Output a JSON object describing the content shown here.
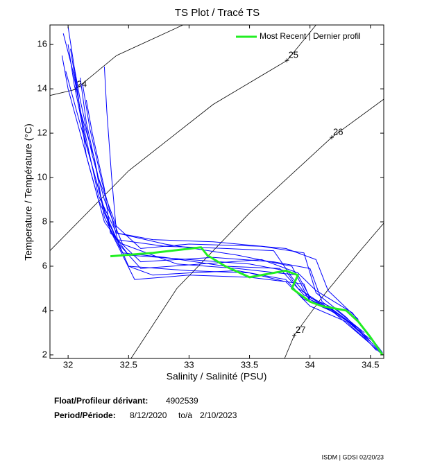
{
  "chart_data": {
    "type": "line",
    "title": "TS Plot / Tracé TS",
    "xlabel": "Salinity / Salinité (PSU)",
    "ylabel": "Temperature / Température (°C)",
    "xlim": [
      31.85,
      34.61
    ],
    "ylim": [
      1.84,
      16.88
    ],
    "xticks": [
      32,
      32.5,
      33,
      33.5,
      34,
      34.5
    ],
    "yticks": [
      2,
      4,
      6,
      8,
      10,
      12,
      14,
      16
    ],
    "legend": "upper right",
    "contour_color": "#000000",
    "contours": [
      {
        "label": "24",
        "x": [
          31.85,
          32.06,
          32.4,
          32.95
        ],
        "values": [
          13.7,
          13.97,
          15.5,
          16.88
        ]
      },
      {
        "label": "25",
        "x": [
          31.85,
          32.5,
          33.2,
          33.81,
          34.05
        ],
        "values": [
          6.7,
          10.3,
          13.3,
          15.28,
          16.88
        ]
      },
      {
        "label": "26",
        "x": [
          32.52,
          32.9,
          33.5,
          34.18,
          34.61
        ],
        "values": [
          1.84,
          5.0,
          8.4,
          11.81,
          13.53
        ]
      },
      {
        "label": "27",
        "x": [
          33.79,
          33.87,
          34.1,
          34.4,
          34.61
        ],
        "values": [
          1.84,
          2.88,
          4.6,
          6.6,
          7.94
        ]
      }
    ],
    "series": [
      {
        "color": "#0000ff",
        "x": [
          32.0,
          32.05,
          32.1,
          32.15,
          32.25,
          32.4,
          32.8,
          33.3,
          33.7,
          33.85,
          34.0,
          34.2,
          34.4,
          34.6
        ],
        "values": [
          16.8,
          15,
          13,
          11,
          9,
          7.2,
          6.9,
          6.8,
          6.7,
          5.5,
          4.5,
          3.9,
          3.2,
          2.0
        ]
      },
      {
        "color": "#0000ff",
        "x": [
          31.95,
          32.0,
          32.1,
          32.2,
          32.3,
          32.5,
          33.0,
          33.5,
          33.8,
          33.9,
          34.1,
          34.3,
          34.5
        ],
        "values": [
          15.5,
          14,
          12,
          10,
          8,
          6.5,
          6.3,
          6.1,
          5.8,
          5.0,
          4.3,
          3.6,
          2.6
        ]
      },
      {
        "color": "#0000ff",
        "x": [
          32.05,
          32.1,
          32.2,
          32.3,
          32.45,
          32.9,
          33.4,
          33.9,
          34.0,
          34.2,
          34.5
        ],
        "values": [
          15.0,
          13.5,
          11,
          9,
          7,
          6.1,
          5.9,
          5.6,
          4.6,
          3.9,
          2.5
        ]
      },
      {
        "color": "#0000ff",
        "x": [
          32.1,
          32.15,
          32.25,
          32.4,
          32.6,
          33.0,
          33.6,
          33.95,
          34.05,
          34.3,
          34.55
        ],
        "values": [
          14.5,
          12.5,
          10,
          7.8,
          6.8,
          7.0,
          6.9,
          6.6,
          4.8,
          3.7,
          2.2
        ]
      },
      {
        "color": "#0000ff",
        "x": [
          32.0,
          32.05,
          32.15,
          32.3,
          32.5,
          33.0,
          33.5,
          33.8,
          34.0,
          34.3,
          34.6
        ],
        "values": [
          16.0,
          14.2,
          11.5,
          8.5,
          6.0,
          5.8,
          5.7,
          5.3,
          4.2,
          3.5,
          2.0
        ]
      },
      {
        "color": "#0000ff",
        "x": [
          32.15,
          32.2,
          32.3,
          32.35,
          32.6,
          33.2,
          33.7,
          34.0,
          34.1,
          34.4
        ],
        "values": [
          13.5,
          12,
          9.5,
          7.5,
          6.2,
          6.4,
          6.2,
          5.9,
          4.4,
          3.2
        ]
      },
      {
        "color": "#0000ff",
        "x": [
          31.98,
          32.08,
          32.2,
          32.35,
          32.55,
          33.0,
          33.5,
          33.95,
          34.0,
          34.2,
          34.5
        ],
        "values": [
          14.8,
          12.8,
          10.5,
          7.6,
          5.4,
          5.6,
          5.5,
          5.2,
          4.5,
          4.0,
          2.7
        ]
      },
      {
        "color": "#0000ff",
        "x": [
          32.3,
          32.32,
          32.36,
          32.4,
          32.7,
          33.2,
          33.8,
          34.05,
          34.15,
          34.4
        ],
        "values": [
          15.0,
          13,
          10,
          7.5,
          7.2,
          7.1,
          6.8,
          6.3,
          4.9,
          3.6
        ]
      },
      {
        "color": "#0000ff",
        "x": [
          32.02,
          32.1,
          32.22,
          32.3,
          32.45,
          32.8,
          33.3,
          33.75,
          33.95,
          34.2,
          34.45
        ],
        "values": [
          15.8,
          13.0,
          10.8,
          8.2,
          6.6,
          6.4,
          6.0,
          5.9,
          4.7,
          4.1,
          3.0
        ]
      },
      {
        "color": "#0000ff",
        "x": [
          32.12,
          32.18,
          32.28,
          32.42,
          32.6,
          33.1,
          33.6,
          33.9,
          34.05,
          34.35,
          34.6
        ],
        "values": [
          14.2,
          12.2,
          9.8,
          7.0,
          5.9,
          6.1,
          6.3,
          5.7,
          4.9,
          3.9,
          2.1
        ]
      },
      {
        "color": "#0000ff",
        "x": [
          31.96,
          32.04,
          32.12,
          32.25,
          32.4,
          32.8,
          33.4,
          33.85,
          34.0,
          34.25,
          34.5
        ],
        "values": [
          16.5,
          14.8,
          12.5,
          9.2,
          7.5,
          7.0,
          6.5,
          6.0,
          4.4,
          3.8,
          2.6
        ]
      },
      {
        "color": "#0000ff",
        "x": [
          32.5,
          32.7,
          33.0,
          33.4,
          33.8,
          33.95,
          34.2
        ],
        "values": [
          6.0,
          5.6,
          5.7,
          5.8,
          5.4,
          4.5,
          4.0
        ]
      },
      {
        "name": "Most Recent | Dernier profil",
        "color": "#22ee22",
        "x": [
          32.35,
          32.7,
          33.1,
          33.15,
          33.3,
          33.5,
          33.8,
          33.9,
          33.85,
          33.95,
          34.0,
          34.1,
          34.3,
          34.4,
          34.5,
          34.6
        ],
        "values": [
          6.45,
          6.6,
          6.85,
          6.5,
          6.0,
          5.5,
          5.8,
          5.6,
          5.0,
          4.6,
          4.4,
          4.2,
          4.0,
          3.5,
          2.8,
          2.0
        ]
      }
    ],
    "info": {
      "float_label": "Float/Profileur dérivant:",
      "float_id": "4902539",
      "period_label": "Period/Période:",
      "start": "8/12/2020",
      "to": "to/à",
      "end": "2/10/2023"
    },
    "footer": "ISDM | GDSI  02/20/23"
  }
}
